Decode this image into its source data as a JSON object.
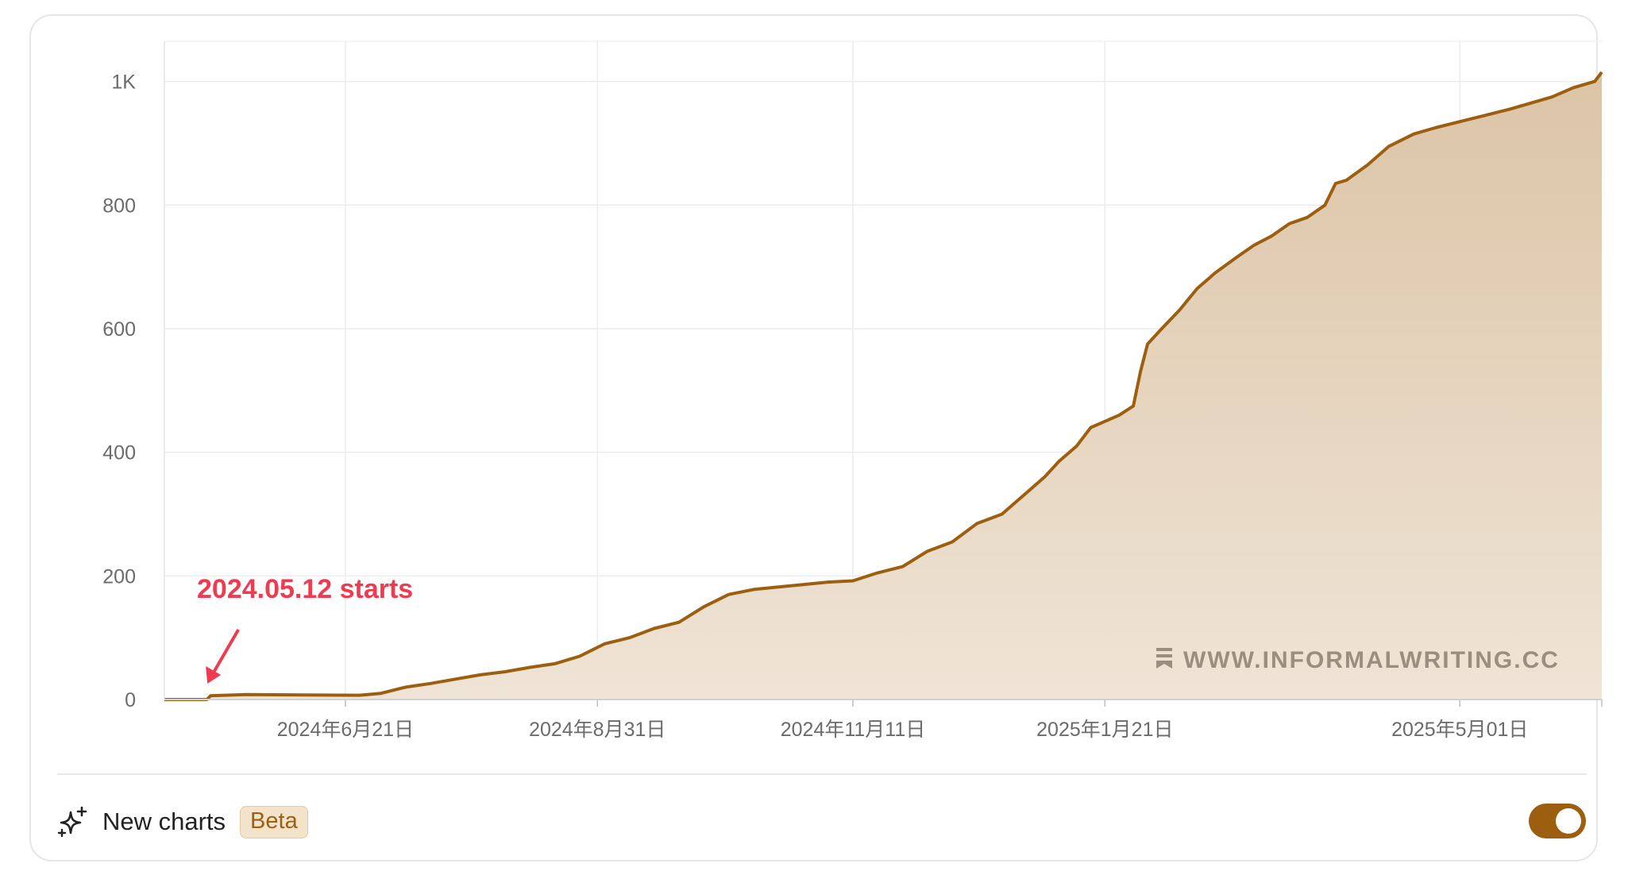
{
  "chart_data": {
    "type": "area",
    "x_axis_type": "date",
    "x_tick_labels": [
      "2024年6月21日",
      "2024年8月31日",
      "2024年11月11日",
      "2025年1月21日",
      "2025年5月01日"
    ],
    "x_ticks": [
      "2024-06-21",
      "2024-08-31",
      "2024-11-11",
      "2025-01-21",
      "2025-05-01"
    ],
    "xlim": [
      "2024-05-01",
      "2025-06-10"
    ],
    "y_tick_labels": [
      "0",
      "200",
      "400",
      "600",
      "800",
      "1K"
    ],
    "y_ticks": [
      0,
      200,
      400,
      600,
      800,
      1000
    ],
    "ylim": [
      0,
      1065
    ],
    "grid": true,
    "series": [
      {
        "color": "#9b5f0f",
        "fill": "#e9d9c4",
        "x": [
          "2024-05-01",
          "2024-05-13",
          "2024-05-14",
          "2024-05-24",
          "2024-06-25",
          "2024-07-01",
          "2024-07-08",
          "2024-07-15",
          "2024-07-22",
          "2024-07-29",
          "2024-08-05",
          "2024-08-12",
          "2024-08-19",
          "2024-08-26",
          "2024-09-02",
          "2024-09-09",
          "2024-09-16",
          "2024-09-23",
          "2024-09-30",
          "2024-10-07",
          "2024-10-14",
          "2024-10-21",
          "2024-10-28",
          "2024-11-04",
          "2024-11-11",
          "2024-11-18",
          "2024-11-25",
          "2024-12-02",
          "2024-12-09",
          "2024-12-16",
          "2024-12-23",
          "2024-12-30",
          "2025-01-04",
          "2025-01-08",
          "2025-01-13",
          "2025-01-17",
          "2025-01-21",
          "2025-01-25",
          "2025-01-29",
          "2025-01-31",
          "2025-02-02",
          "2025-02-06",
          "2025-02-11",
          "2025-02-16",
          "2025-02-21",
          "2025-02-27",
          "2025-03-04",
          "2025-03-09",
          "2025-03-14",
          "2025-03-19",
          "2025-03-24",
          "2025-03-27",
          "2025-03-30",
          "2025-04-05",
          "2025-04-11",
          "2025-04-18",
          "2025-04-24",
          "2025-05-01",
          "2025-05-08",
          "2025-05-15",
          "2025-05-21",
          "2025-05-27",
          "2025-06-02",
          "2025-06-08",
          "2025-06-10"
        ],
        "y": [
          0,
          0,
          6,
          8,
          7,
          10,
          20,
          26,
          33,
          40,
          45,
          52,
          58,
          70,
          90,
          100,
          115,
          125,
          150,
          170,
          178,
          182,
          186,
          190,
          192,
          205,
          215,
          240,
          255,
          285,
          300,
          335,
          360,
          385,
          410,
          440,
          450,
          460,
          475,
          530,
          575,
          600,
          630,
          665,
          690,
          715,
          735,
          750,
          770,
          780,
          800,
          835,
          840,
          865,
          895,
          915,
          925,
          935,
          945,
          955,
          965,
          975,
          990,
          1000,
          1015
        ]
      }
    ],
    "annotations": [
      {
        "text": "2024.05.12 starts",
        "date": "2024-05-12",
        "value": 0
      }
    ]
  },
  "watermark": {
    "text": "WWW.INFORMALWRITING.CC",
    "icon": "bookmark-icon"
  },
  "footer": {
    "label": "New charts",
    "badge": "Beta",
    "toggle_on": true,
    "icon": "sparkle-icon"
  },
  "colors": {
    "line": "#9b5f0f",
    "annotation": "#ef3b4f",
    "badge_bg": "#f3e3cb"
  }
}
